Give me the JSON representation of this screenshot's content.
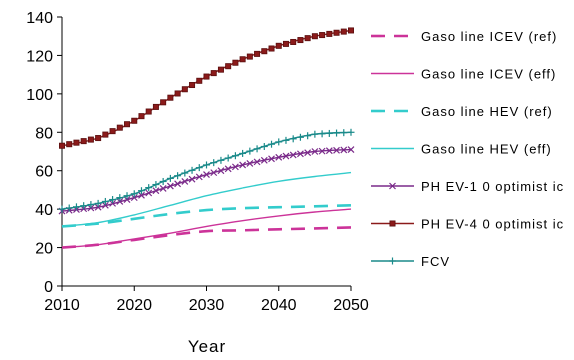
{
  "chart_data": {
    "type": "line",
    "title": "",
    "xlabel": "Year",
    "ylabel": "",
    "xlim": [
      2010,
      2050
    ],
    "ylim": [
      0,
      140
    ],
    "xticks": [
      2010,
      2020,
      2030,
      2040,
      2050
    ],
    "yticks": [
      0,
      20,
      40,
      60,
      80,
      100,
      120,
      140
    ],
    "grid": false,
    "legend": "right",
    "x": [
      2010,
      2015,
      2020,
      2025,
      2030,
      2035,
      2040,
      2045,
      2050
    ],
    "series": [
      {
        "name": "Gaso line ICEV (ref)",
        "color": "#cc3399",
        "dash": "long-dash",
        "marker": "none",
        "values": [
          20,
          21.5,
          24,
          26.5,
          28.5,
          29,
          29.5,
          30,
          30.5
        ]
      },
      {
        "name": "Gaso line ICEV (eff)",
        "color": "#cc3399",
        "dash": "solid",
        "marker": "none",
        "values": [
          20,
          21.5,
          24.5,
          27.5,
          31,
          34,
          36.5,
          38.5,
          40
        ]
      },
      {
        "name": "Gaso line HEV (ref)",
        "color": "#33cccc",
        "dash": "long-dash",
        "marker": "none",
        "values": [
          31,
          32.5,
          35,
          37.5,
          39.5,
          40.5,
          41,
          41.5,
          42
        ]
      },
      {
        "name": "Gaso line HEV (eff)",
        "color": "#33cccc",
        "dash": "solid",
        "marker": "none",
        "values": [
          31,
          33,
          37,
          42,
          47,
          51,
          54.5,
          57,
          59
        ]
      },
      {
        "name": "PH EV-1 0 optimist ic",
        "color": "#7a2a8a",
        "dash": "solid",
        "marker": "x",
        "values": [
          39,
          41,
          46,
          52,
          58,
          63,
          67,
          70,
          71
        ]
      },
      {
        "name": "PH EV-4 0 optimist ic",
        "color": "#8b1a1a",
        "dash": "solid",
        "marker": "square",
        "values": [
          73,
          77,
          86,
          98,
          109,
          118,
          125,
          130,
          133
        ]
      },
      {
        "name": "FCV",
        "color": "#1a8a8a",
        "dash": "solid",
        "marker": "plus",
        "values": [
          40,
          43,
          48,
          56,
          63,
          69,
          75,
          79,
          80
        ]
      }
    ]
  }
}
